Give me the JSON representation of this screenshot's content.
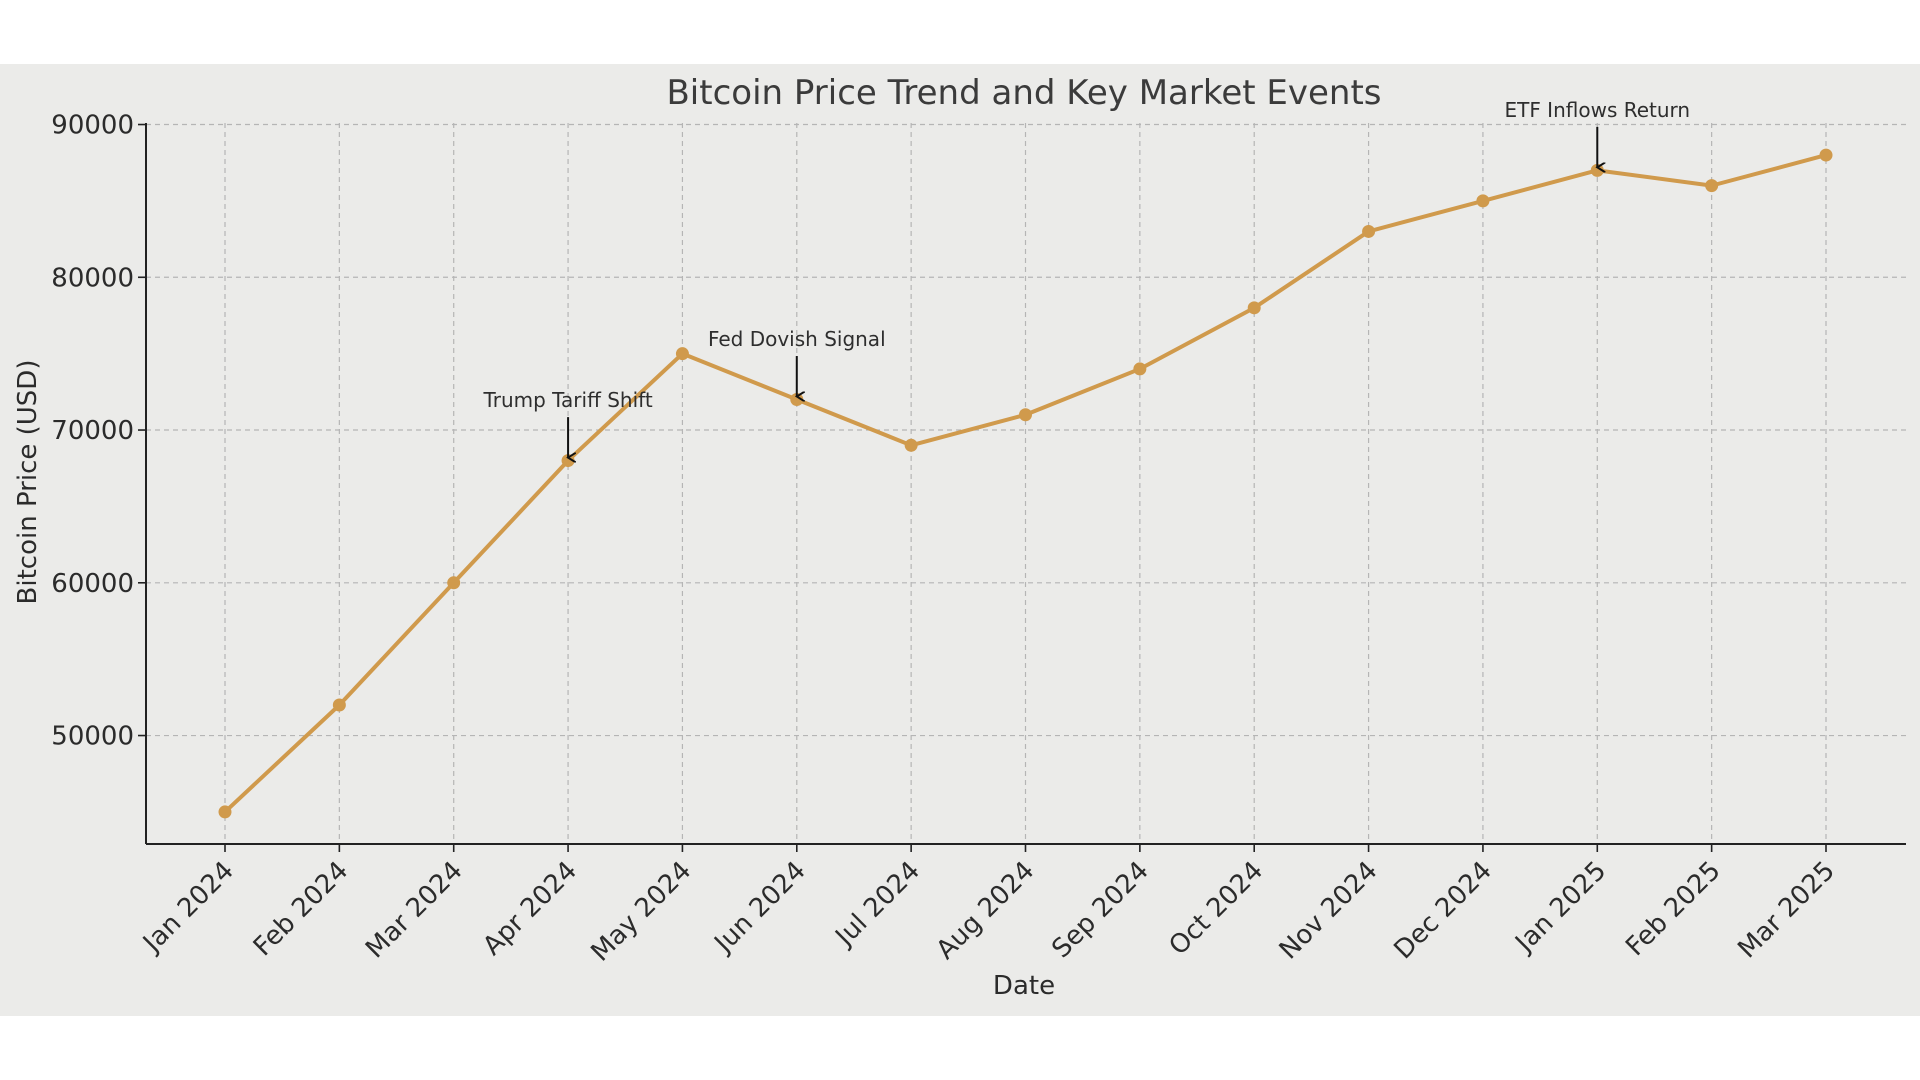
{
  "chart_data": {
    "type": "line",
    "title": "Bitcoin Price Trend and Key Market Events",
    "xlabel": "Date",
    "ylabel": "Bitcoin Price (USD)",
    "categories": [
      "Jan 2024",
      "Feb 2024",
      "Mar 2024",
      "Apr 2024",
      "May 2024",
      "Jun 2024",
      "Jul 2024",
      "Aug 2024",
      "Sep 2024",
      "Oct 2024",
      "Nov 2024",
      "Dec 2024",
      "Jan 2025",
      "Feb 2025",
      "Mar 2025"
    ],
    "series": [
      {
        "values": [
          45000,
          52000,
          60000,
          68000,
          75000,
          72000,
          69000,
          71000,
          74000,
          78000,
          83000,
          85000,
          87000,
          86000,
          88000
        ],
        "color": "#d09a4c",
        "marker": "circle"
      }
    ],
    "ylim": [
      42900,
      90100
    ],
    "yticks": [
      50000,
      60000,
      70000,
      80000,
      90000
    ],
    "grid": true,
    "annotations": [
      {
        "text": "Trump Tariff Shift",
        "category": "Apr 2024",
        "value": 68000,
        "text_value": 71500
      },
      {
        "text": "Fed Dovish Signal",
        "category": "Jun 2024",
        "value": 72000,
        "text_value": 75500
      },
      {
        "text": "ETF Inflows Return",
        "category": "Jan 2025",
        "value": 87000,
        "text_value": 90500
      }
    ]
  }
}
